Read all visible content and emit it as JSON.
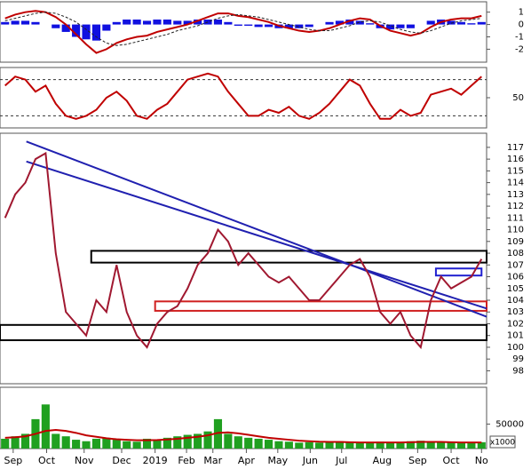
{
  "chart_data": [
    {
      "type": "line",
      "xlim": [
        0,
        48
      ],
      "ylim": [
        -3.05,
        1.84
      ],
      "yticks": [
        1,
        0,
        -1,
        -2
      ],
      "series": [
        {
          "type": "bar",
          "color": "#1010e0",
          "values": [
            0.2,
            0.3,
            0.3,
            0.2,
            0,
            -0.3,
            -0.6,
            -1.0,
            -1.2,
            -1.3,
            -0.5,
            0.2,
            0.4,
            0.4,
            0.3,
            0.4,
            0.4,
            0.3,
            0.3,
            0.4,
            0.4,
            0.4,
            0.2,
            -0.1,
            -0.1,
            -0.2,
            -0.2,
            -0.3,
            -0.3,
            -0.3,
            -0.2,
            0,
            0.2,
            0.3,
            0.4,
            0.3,
            0.1,
            -0.3,
            -0.4,
            -0.3,
            -0.3,
            0,
            0.3,
            0.4,
            0.3,
            0.2,
            0.1,
            0.2
          ]
        },
        {
          "type": "line",
          "color": "#c00000",
          "values": [
            0.5,
            0.8,
            1.0,
            1.1,
            1.0,
            0.6,
            0,
            -0.8,
            -1.6,
            -2.3,
            -2.0,
            -1.5,
            -1.2,
            -1.0,
            -0.9,
            -0.6,
            -0.4,
            -0.2,
            0.0,
            0.3,
            0.6,
            0.9,
            0.9,
            0.7,
            0.6,
            0.4,
            0.2,
            -0.1,
            -0.3,
            -0.5,
            -0.6,
            -0.5,
            -0.3,
            0.0,
            0.3,
            0.5,
            0.4,
            -0.1,
            -0.5,
            -0.7,
            -0.9,
            -0.7,
            -0.2,
            0.2,
            0.4,
            0.5,
            0.5,
            0.7
          ]
        },
        {
          "type": "line",
          "dashed": true,
          "color": "#222222",
          "values": [
            0.3,
            0.5,
            0.7,
            0.9,
            1.0,
            0.9,
            0.6,
            0.2,
            -0.4,
            -1.0,
            -1.5,
            -1.7,
            -1.6,
            -1.4,
            -1.2,
            -1.0,
            -0.8,
            -0.5,
            -0.3,
            -0.1,
            0.2,
            0.5,
            0.7,
            0.8,
            0.7,
            0.6,
            0.4,
            0.2,
            0.0,
            -0.2,
            -0.4,
            -0.5,
            -0.5,
            -0.3,
            -0.1,
            0.2,
            0.3,
            0.2,
            -0.1,
            -0.4,
            -0.6,
            -0.7,
            -0.5,
            -0.2,
            0.1,
            0.3,
            0.4,
            0.5
          ]
        }
      ]
    },
    {
      "type": "line",
      "xlim": [
        0,
        48
      ],
      "ylim": [
        0,
        100
      ],
      "yticks": [
        50
      ],
      "levels": [
        80,
        20
      ],
      "series": [
        {
          "type": "line",
          "color": "#c00000",
          "values": [
            70,
            85,
            80,
            60,
            70,
            40,
            20,
            15,
            20,
            30,
            50,
            60,
            45,
            20,
            15,
            30,
            40,
            60,
            80,
            85,
            90,
            85,
            60,
            40,
            20,
            20,
            30,
            25,
            35,
            20,
            15,
            25,
            40,
            60,
            80,
            70,
            40,
            15,
            15,
            30,
            20,
            25,
            55,
            60,
            65,
            55,
            70,
            85
          ]
        }
      ]
    },
    {
      "type": "line",
      "xlim": [
        0,
        48
      ],
      "ylim": [
        96.9,
        118.2
      ],
      "yticks": [
        98,
        99,
        100,
        101,
        102,
        103,
        104,
        105,
        106,
        107,
        108,
        109,
        110,
        111,
        112,
        113,
        114,
        115,
        116,
        117
      ],
      "series": [
        {
          "type": "line",
          "color": "#a01830",
          "values": [
            111,
            113,
            114,
            116,
            116.5,
            108,
            103,
            102,
            101,
            104,
            103,
            107,
            103,
            101,
            100,
            102,
            103,
            103.5,
            105,
            107,
            108,
            110,
            109,
            107,
            108,
            107,
            106,
            105.5,
            106,
            105,
            104,
            104,
            105,
            106,
            107,
            107.5,
            106,
            103,
            102,
            103,
            101,
            100,
            104,
            106,
            105,
            105.5,
            106,
            107.5
          ]
        }
      ],
      "trendlines": [
        {
          "color": "#2020b0",
          "x": [
            2.6,
            48
          ],
          "y": [
            117.5,
            102.6
          ]
        },
        {
          "color": "#2020b0",
          "x": [
            2.6,
            48
          ],
          "y": [
            115.8,
            103.3
          ]
        }
      ],
      "boxes": [
        {
          "color": "#000000",
          "x": [
            9,
            48
          ],
          "y": [
            107.2,
            108.2
          ]
        },
        {
          "color": "#000000",
          "x": [
            0,
            48
          ],
          "y": [
            100.6,
            101.9
          ]
        },
        {
          "color": "#d02020",
          "x": [
            15.3,
            48
          ],
          "y": [
            103.1,
            103.9
          ]
        },
        {
          "color": "#2020d0",
          "x": [
            43,
            47.5
          ],
          "y": [
            106.1,
            106.7
          ]
        }
      ]
    },
    {
      "type": "bar",
      "xlim": [
        0,
        48
      ],
      "ylim": [
        0,
        125000
      ],
      "yticks": [
        50000
      ],
      "unit_label": "x1000",
      "xticks": [
        {
          "value": 1.3,
          "label": "Sep"
        },
        {
          "value": 4.6,
          "label": "Oct"
        },
        {
          "value": 8.3,
          "label": "Nov"
        },
        {
          "value": 12,
          "label": "Dec"
        },
        {
          "value": 15.3,
          "label": "2019"
        },
        {
          "value": 18.4,
          "label": "Feb"
        },
        {
          "value": 21,
          "label": "Mar"
        },
        {
          "value": 24.3,
          "label": "Apr"
        },
        {
          "value": 27.4,
          "label": "May"
        },
        {
          "value": 30.6,
          "label": "Jun"
        },
        {
          "value": 33.7,
          "label": "Jul"
        },
        {
          "value": 37.7,
          "label": "Aug"
        },
        {
          "value": 41.2,
          "label": "Sep"
        },
        {
          "value": 44.5,
          "label": "Oct"
        },
        {
          "value": 47.5,
          "label": "No"
        }
      ],
      "series": [
        {
          "type": "bar",
          "color": "#20a020",
          "values": [
            20000,
            25000,
            30000,
            60000,
            90000,
            30000,
            25000,
            18000,
            15000,
            20000,
            22000,
            18000,
            15000,
            14000,
            20000,
            18000,
            22000,
            25000,
            28000,
            30000,
            35000,
            60000,
            30000,
            25000,
            22000,
            20000,
            18000,
            15000,
            14000,
            12000,
            13000,
            12000,
            14000,
            15000,
            12000,
            11000,
            12000,
            14000,
            13000,
            12000,
            15000,
            16000,
            14000,
            13000,
            12000,
            11000,
            12000,
            13000
          ]
        },
        {
          "type": "line",
          "color": "#c00000",
          "values": [
            22000,
            23000,
            25000,
            30000,
            36000,
            38000,
            36000,
            32000,
            27000,
            24000,
            21000,
            19000,
            18000,
            17000,
            17000,
            17500,
            18500,
            20000,
            22000,
            24000,
            27000,
            32000,
            33000,
            31000,
            28000,
            25000,
            22000,
            20000,
            18000,
            16000,
            15000,
            14000,
            13500,
            13500,
            13000,
            12500,
            12500,
            12500,
            12500,
            12500,
            13000,
            13500,
            13500,
            13500,
            13000,
            12500,
            12500,
            12500
          ]
        }
      ]
    }
  ]
}
